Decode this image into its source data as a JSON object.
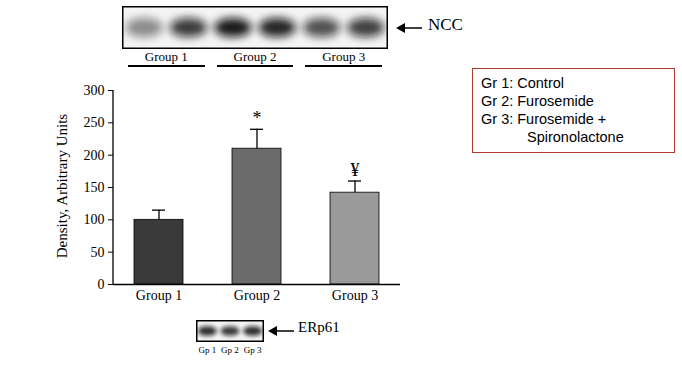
{
  "chart_data": {
    "type": "bar",
    "categories": [
      "Group 1",
      "Group 2",
      "Group 3"
    ],
    "values": [
      100,
      210,
      142
    ],
    "errors": [
      15,
      30,
      18
    ],
    "significance": [
      null,
      "*",
      "¥"
    ],
    "colors": [
      "#3a3a3a",
      "#6b6b6b",
      "#9a9a9a"
    ],
    "y_label": "Density, Arbitrary Units",
    "ylim": [
      0,
      300
    ],
    "yticks": [
      0,
      50,
      100,
      150,
      200,
      250,
      300
    ],
    "blots": [
      {
        "label": "NCC",
        "lanes": [
          "Group 1",
          "Group 2",
          "Group 3"
        ]
      },
      {
        "label": "ERp61",
        "lanes": [
          "Gp 1",
          "Gp 2",
          "Gp 3"
        ]
      }
    ],
    "legend_text": [
      "Gr 1: Control",
      "Gr 2: Furosemide",
      "Gr 3: Furosemide +",
      "Spironolactone"
    ]
  }
}
